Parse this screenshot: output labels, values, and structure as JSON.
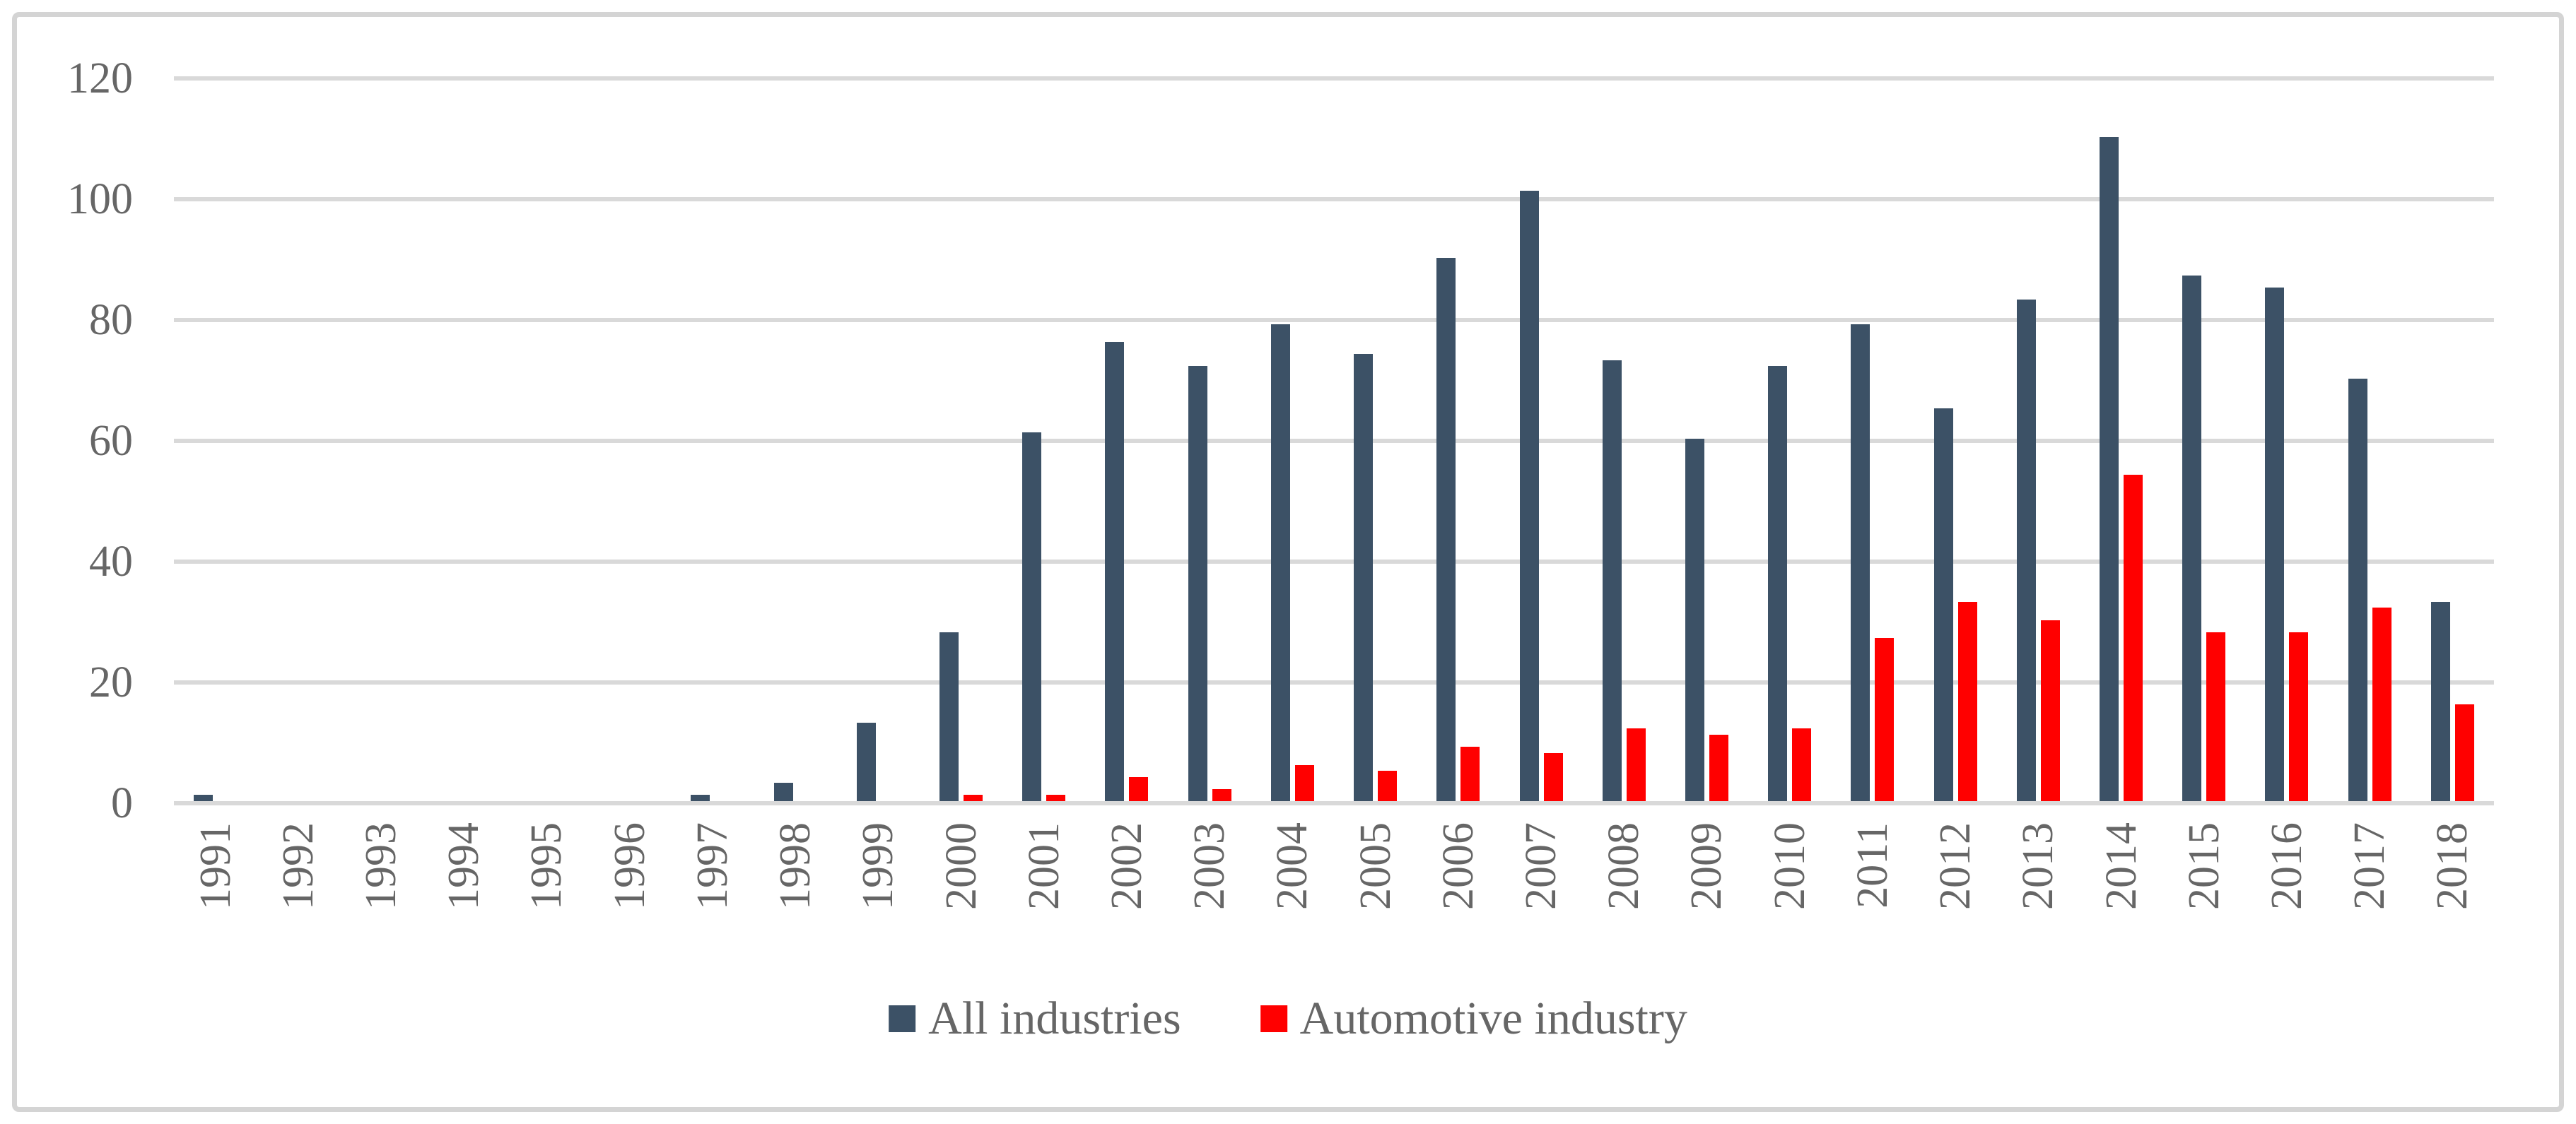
{
  "figure": {
    "background_color": "#FFFFFF",
    "frame_color": "#D4D4D4",
    "gridline_color": "#D9D9D9",
    "text_color": "#666666"
  },
  "chart_data": {
    "type": "bar",
    "title": "",
    "xlabel": "",
    "ylabel": "",
    "categories": [
      "1991",
      "1992",
      "1993",
      "1994",
      "1995",
      "1996",
      "1997",
      "1998",
      "1999",
      "2000",
      "2001",
      "2002",
      "2003",
      "2004",
      "2005",
      "2006",
      "2007",
      "2008",
      "2009",
      "2010",
      "2011",
      "2012",
      "2013",
      "2014",
      "2015",
      "2016",
      "2017",
      "2018"
    ],
    "series": [
      {
        "name": "All industries",
        "color": "#3C5166",
        "values": [
          1,
          0,
          0,
          0,
          0,
          0,
          1,
          3,
          13,
          28,
          61,
          76,
          72,
          79,
          74,
          90,
          101,
          73,
          60,
          72,
          79,
          65,
          83,
          110,
          87,
          85,
          70,
          33
        ]
      },
      {
        "name": "Automotive industry",
        "color": "#FF0000",
        "values": [
          0,
          0,
          0,
          0,
          0,
          0,
          0,
          0,
          0,
          1,
          1,
          4,
          2,
          6,
          5,
          9,
          8,
          12,
          11,
          12,
          27,
          33,
          30,
          54,
          28,
          28,
          32,
          16
        ]
      }
    ],
    "y_ticks": [
      0,
      20,
      40,
      60,
      80,
      100,
      120
    ],
    "ylim": [
      0,
      120
    ],
    "grid": true,
    "legend_position": "bottom-center",
    "x_tick_rotation_degrees": -90
  }
}
